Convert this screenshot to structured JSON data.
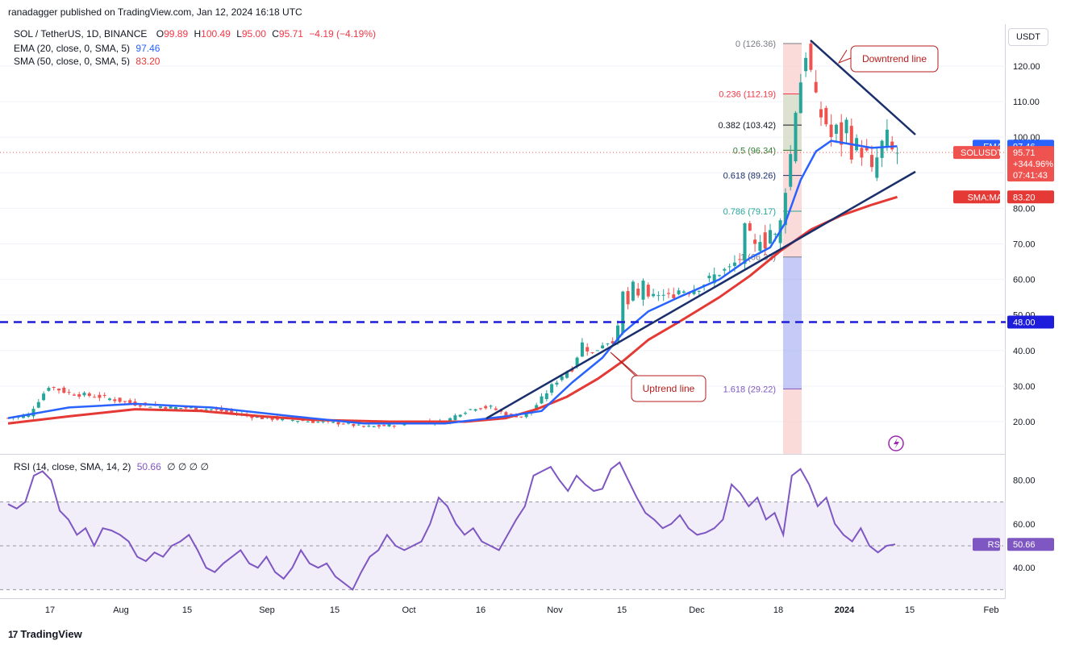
{
  "header": {
    "publisher": "ranadagger published on TradingView.com, Jan 12, 2024 16:18 UTC"
  },
  "legend": {
    "symbol": "SOL / TetherUS, 1D, BINANCE",
    "open_label": "O",
    "open": "99.89",
    "high_label": "H",
    "high": "100.49",
    "low_label": "L",
    "low": "95.00",
    "close_label": "C",
    "close": "95.71",
    "change": "−4.19 (−4.19%)",
    "ema": "EMA (20, close, 0, SMA, 5)",
    "ema_value": "97.46",
    "sma": "SMA (50, close, 0, SMA, 5)",
    "sma_value": "83.20",
    "rsi": "RSI (14, close, SMA, 14, 2)",
    "rsi_value": "50.66",
    "rsi_extra": "∅ ∅ ∅ ∅"
  },
  "currency": "USDT",
  "footer": {
    "brand": "TradingView",
    "logo": "17"
  },
  "annotations": {
    "downtrend": "Downtrend line",
    "uptrend": "Uptrend line"
  },
  "price_tags": {
    "ema_label": "EMA",
    "ema_value": "97.46",
    "sym_label": "SOLUSDT",
    "sym_value": "95.71",
    "sym_change": "+344.96%",
    "sym_time": "07:41:43",
    "sma_label": "SMA:MA",
    "sma_value": "83.20",
    "support_value": "48.00",
    "rsi_label": "RSI",
    "rsi_value": "50.66"
  },
  "colors": {
    "up": "#26a69a",
    "down": "#ef5350",
    "ema": "#2962ff",
    "sma": "#e53935",
    "support": "#1d1ddb",
    "rsi": "#7e57c2",
    "trend": "#1a2f6b"
  },
  "chart_data": [
    {
      "type": "candlestick",
      "title": "SOL / TetherUS, 1D, BINANCE",
      "ylim": [
        12,
        131
      ],
      "yticks": [
        "120.00",
        "110.00",
        "100.00",
        "90.00",
        "80.00",
        "70.00",
        "60.00",
        "50.00",
        "40.00",
        "30.00",
        "20.00"
      ],
      "xticks": [
        "17",
        "Aug",
        "15",
        "Sep",
        "15",
        "Oct",
        "16",
        "Nov",
        "15",
        "Dec",
        "18",
        "2024",
        "15",
        "Feb"
      ],
      "close_path": [
        [
          0,
          21
        ],
        [
          4,
          22
        ],
        [
          8,
          30
        ],
        [
          12,
          28
        ],
        [
          18,
          27
        ],
        [
          25,
          25
        ],
        [
          32,
          24
        ],
        [
          40,
          23.5
        ],
        [
          46,
          22
        ],
        [
          50,
          21
        ],
        [
          56,
          20.5
        ],
        [
          60,
          20
        ],
        [
          66,
          19.5
        ],
        [
          70,
          18.5
        ],
        [
          74,
          18.8
        ],
        [
          78,
          19.5
        ],
        [
          82,
          20
        ],
        [
          86,
          20
        ],
        [
          89,
          22.5
        ],
        [
          92,
          24
        ],
        [
          95,
          24
        ],
        [
          98,
          22
        ],
        [
          101,
          21.5
        ],
        [
          103,
          23
        ],
        [
          105,
          26.5
        ],
        [
          107,
          30
        ],
        [
          109,
          33
        ],
        [
          111,
          35
        ],
        [
          113,
          42
        ],
        [
          115,
          39
        ],
        [
          117,
          42
        ],
        [
          119,
          43
        ],
        [
          120,
          46
        ],
        [
          121,
          56
        ],
        [
          122,
          53
        ],
        [
          123,
          58
        ],
        [
          124,
          55
        ],
        [
          125,
          60
        ],
        [
          126,
          54
        ],
        [
          128,
          56
        ],
        [
          130,
          55
        ],
        [
          132,
          57
        ],
        [
          134,
          57
        ],
        [
          136,
          58
        ],
        [
          138,
          60
        ],
        [
          140,
          62
        ],
        [
          142,
          63
        ],
        [
          144,
          66
        ],
        [
          145,
          74
        ],
        [
          146,
          72
        ],
        [
          147,
          69
        ],
        [
          148,
          72
        ],
        [
          149,
          70
        ],
        [
          150,
          74
        ],
        [
          151,
          72
        ],
        [
          152,
          76
        ],
        [
          153,
          86
        ],
        [
          154,
          95
        ],
        [
          155,
          108
        ],
        [
          156,
          116
        ],
        [
          157,
          124
        ],
        [
          158,
          118
        ],
        [
          159,
          110
        ],
        [
          160,
          106
        ],
        [
          161,
          104
        ],
        [
          162,
          100
        ],
        [
          163,
          102
        ],
        [
          164,
          99
        ],
        [
          165,
          104
        ],
        [
          166,
          96
        ],
        [
          167,
          98
        ],
        [
          168,
          96
        ],
        [
          169,
          95
        ],
        [
          170,
          90
        ],
        [
          171,
          94
        ],
        [
          172,
          98
        ],
        [
          173,
          100
        ],
        [
          174,
          96
        ],
        [
          175,
          95.71
        ]
      ]
    },
    {
      "type": "line",
      "title": "EMA (20, close, 0, SMA, 5)",
      "series_name": "EMA 20",
      "last": 97.46,
      "points": [
        [
          0,
          21
        ],
        [
          12,
          24
        ],
        [
          25,
          25
        ],
        [
          40,
          24
        ],
        [
          56,
          21.5
        ],
        [
          70,
          19.5
        ],
        [
          86,
          19.5
        ],
        [
          98,
          21.5
        ],
        [
          105,
          23
        ],
        [
          111,
          31
        ],
        [
          117,
          38
        ],
        [
          121,
          45
        ],
        [
          126,
          51
        ],
        [
          132,
          55
        ],
        [
          140,
          60
        ],
        [
          146,
          66
        ],
        [
          150,
          69
        ],
        [
          153,
          76
        ],
        [
          156,
          88
        ],
        [
          159,
          96
        ],
        [
          162,
          99
        ],
        [
          166,
          98
        ],
        [
          170,
          97
        ],
        [
          175,
          97.46
        ]
      ]
    },
    {
      "type": "line",
      "title": "SMA (50, close, 0, SMA, 5)",
      "series_name": "SMA 50",
      "last": 83.2,
      "points": [
        [
          0,
          19.5
        ],
        [
          12,
          21.5
        ],
        [
          25,
          23.5
        ],
        [
          38,
          23
        ],
        [
          50,
          21.5
        ],
        [
          60,
          20.5
        ],
        [
          75,
          20
        ],
        [
          90,
          20
        ],
        [
          98,
          21
        ],
        [
          104,
          23.5
        ],
        [
          110,
          27
        ],
        [
          116,
          32
        ],
        [
          121,
          37
        ],
        [
          126,
          43
        ],
        [
          132,
          48
        ],
        [
          140,
          55
        ],
        [
          146,
          61
        ],
        [
          152,
          68
        ],
        [
          158,
          74
        ],
        [
          164,
          78
        ],
        [
          170,
          81
        ],
        [
          175,
          83.2
        ]
      ]
    },
    {
      "type": "fibonacci",
      "levels": [
        {
          "ratio": "0",
          "value": "126.36"
        },
        {
          "ratio": "0.236",
          "value": "112.19"
        },
        {
          "ratio": "0.382",
          "value": "103.42"
        },
        {
          "ratio": "0.5",
          "value": "96.34"
        },
        {
          "ratio": "0.618",
          "value": "89.26"
        },
        {
          "ratio": "0.786",
          "value": "79.17"
        },
        {
          "ratio": "1",
          "value": "66.32"
        },
        {
          "ratio": "1.618",
          "value": "29.22"
        }
      ]
    },
    {
      "type": "line",
      "title": "RSI (14, close, SMA, 14, 2)",
      "ylim": [
        25,
        90
      ],
      "yticks": [
        "80.00",
        "60.00",
        "40.00"
      ],
      "band": [
        30,
        70
      ],
      "values": [
        69,
        67,
        70,
        82,
        84,
        80,
        66,
        62,
        55,
        58,
        50,
        58,
        57,
        55,
        52,
        45,
        43,
        47,
        45,
        50,
        52,
        55,
        48,
        40,
        38,
        42,
        45,
        48,
        42,
        40,
        45,
        38,
        35,
        40,
        48,
        42,
        40,
        42,
        36,
        33,
        30,
        38,
        45,
        48,
        55,
        50,
        48,
        50,
        52,
        60,
        72,
        68,
        60,
        55,
        58,
        52,
        50,
        48,
        55,
        62,
        68,
        82,
        84,
        86,
        80,
        75,
        82,
        78,
        75,
        76,
        85,
        88,
        80,
        72,
        65,
        62,
        58,
        60,
        64,
        58,
        55,
        56,
        58,
        62,
        78,
        74,
        68,
        72,
        62,
        65,
        55,
        82,
        85,
        78,
        68,
        72,
        60,
        55,
        52,
        58,
        50,
        47,
        50,
        50.66
      ]
    }
  ]
}
